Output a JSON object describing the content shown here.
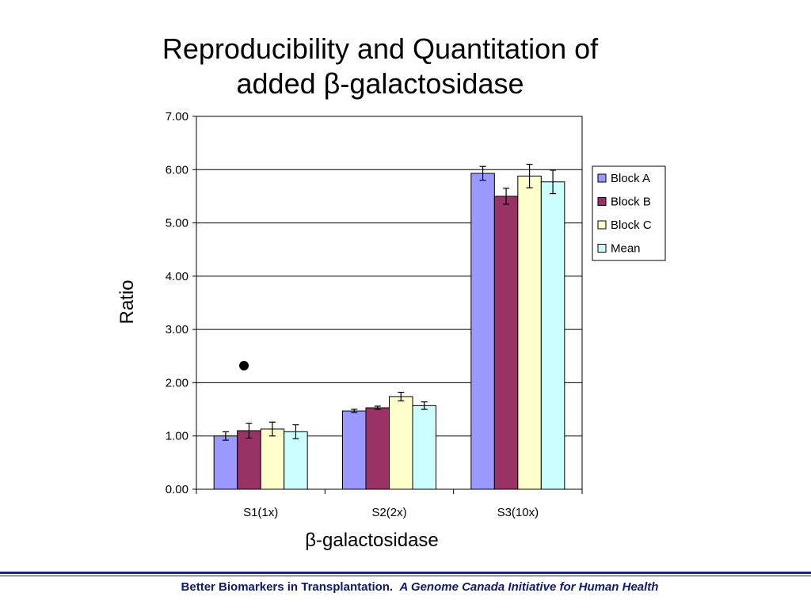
{
  "slide": {
    "title_line1": "Reproducibility and Quantitation of",
    "title_line2_prefix": "added ",
    "title_line2_symbol": "β",
    "title_line2_suffix": "-galactosidase",
    "footer_text": "Better Biomarkers in Transplantation.",
    "footer_italic": "A Genome Canada Initiative for Human Health"
  },
  "chart_data": {
    "type": "bar",
    "title": "",
    "xlabel": "β-galactosidase",
    "ylabel": "Ratio",
    "ylim": [
      0,
      7
    ],
    "yticks": [
      "0.00",
      "1.00",
      "2.00",
      "3.00",
      "4.00",
      "5.00",
      "6.00",
      "7.00"
    ],
    "grid": true,
    "legend_position": "right",
    "categories": [
      "S1(1x)",
      "S2(2x)",
      "S3(10x)"
    ],
    "series": [
      {
        "name": "Block A",
        "color": "#9999ff",
        "values": [
          1.0,
          1.47,
          5.93
        ],
        "errors": [
          0.08,
          0.03,
          0.13
        ]
      },
      {
        "name": "Block B",
        "color": "#993366",
        "values": [
          1.1,
          1.53,
          5.5
        ],
        "errors": [
          0.14,
          0.03,
          0.15
        ]
      },
      {
        "name": "Block C",
        "color": "#ffffcc",
        "values": [
          1.13,
          1.74,
          5.88
        ],
        "errors": [
          0.13,
          0.08,
          0.22
        ]
      },
      {
        "name": "Mean",
        "color": "#ccffff",
        "values": [
          1.08,
          1.57,
          5.77
        ],
        "errors": [
          0.13,
          0.07,
          0.22
        ]
      }
    ],
    "annotations": [
      {
        "type": "dot",
        "category": "S1(1x)",
        "y": 2.32
      }
    ]
  }
}
